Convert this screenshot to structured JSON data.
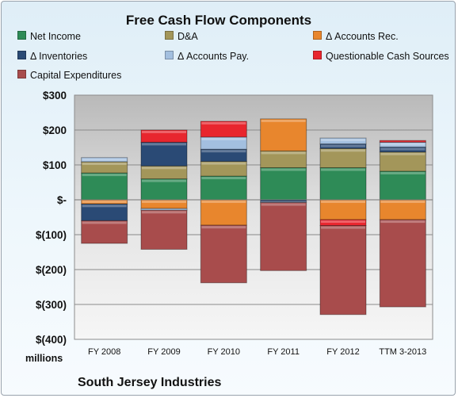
{
  "chart_data": {
    "type": "bar",
    "stacked": true,
    "title": "Free Cash Flow Components",
    "units_label": "millions",
    "footer": "South Jersey Industries",
    "categories": [
      "FY 2008",
      "FY 2009",
      "FY 2010",
      "FY 2011",
      "FY 2012",
      "TTM 3-2013"
    ],
    "y_ticks": [
      "$300",
      "$200",
      "$100",
      "$-",
      "$(100)",
      "$(200)",
      "$(300)",
      "$(400)"
    ],
    "ylim": [
      -400,
      300
    ],
    "grid": true,
    "legend_position": "top",
    "series": [
      {
        "name": "Net Income",
        "color": "#2e8b57",
        "values": [
          77,
          60,
          68,
          92,
          92,
          82
        ]
      },
      {
        "name": "D&A",
        "color": "#a3965a",
        "values": [
          32,
          37,
          42,
          48,
          55,
          55
        ]
      },
      {
        "name": "Δ Accounts Rec.",
        "color": "#e8862d",
        "values": [
          -12,
          -25,
          -73,
          92,
          -57,
          -57
        ]
      },
      {
        "name": "Δ Inventories",
        "color": "#2a4a75",
        "values": [
          -48,
          68,
          35,
          -5,
          13,
          14
        ]
      },
      {
        "name": "Δ Accounts Pay.",
        "color": "#a3bfdf",
        "values": [
          12,
          -5,
          35,
          -3,
          17,
          14
        ]
      },
      {
        "name": "Questionable Cash Sources",
        "color": "#e8262e",
        "values": [
          0,
          35,
          45,
          0,
          -17,
          5
        ]
      },
      {
        "name": "Capital Expenditures",
        "color": "#a84c4c",
        "values": [
          -65,
          -112,
          -165,
          -195,
          -255,
          -250
        ]
      }
    ]
  }
}
